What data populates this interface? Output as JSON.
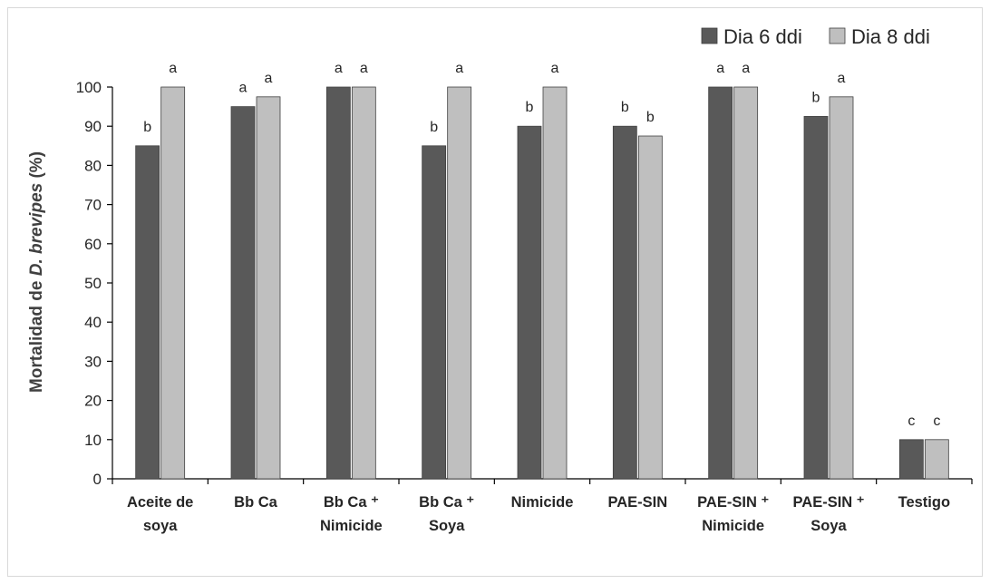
{
  "chart_data": {
    "type": "bar",
    "ylabel_prefix": "Mortalidad de ",
    "ylabel_italic": "D. brevipes",
    "ylabel_suffix": " (%)",
    "ylim": [
      0,
      100
    ],
    "yticks": [
      0,
      10,
      20,
      30,
      40,
      50,
      60,
      70,
      80,
      90,
      100
    ],
    "legend_position": "top-right",
    "categories": [
      [
        "Aceite de",
        "soya"
      ],
      [
        "Bb Ca"
      ],
      [
        "Bb Ca ⁺",
        "Nimicide"
      ],
      [
        "Bb Ca ⁺",
        "Soya"
      ],
      [
        "Nimicide"
      ],
      [
        "PAE-SIN"
      ],
      [
        "PAE-SIN ⁺",
        "Nimicide"
      ],
      [
        "PAE-SIN ⁺",
        "Soya"
      ],
      [
        "Testigo"
      ]
    ],
    "series": [
      {
        "name": "Dia 6 ddi",
        "color": "#595959",
        "values": [
          85,
          95,
          100,
          85,
          90,
          90,
          100,
          92.5,
          10
        ],
        "letters": [
          "b",
          "a",
          "a",
          "b",
          "b",
          "b",
          "a",
          "b",
          "c"
        ]
      },
      {
        "name": "Dia 8 ddi",
        "color": "#bfbfbf",
        "values": [
          100,
          97.5,
          100,
          100,
          100,
          87.5,
          100,
          97.5,
          10
        ],
        "letters": [
          "a",
          "a",
          "a",
          "a",
          "a",
          "b",
          "a",
          "a",
          "c"
        ]
      }
    ],
    "grid": false
  }
}
